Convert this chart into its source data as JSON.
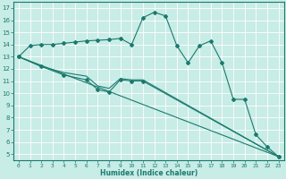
{
  "bg_color": "#c8ece6",
  "line_color": "#1a7a6e",
  "grid_color": "#b0ddd6",
  "xlabel": "Humidex (Indice chaleur)",
  "xlim": [
    -0.5,
    23.5
  ],
  "ylim": [
    4.5,
    17.5
  ],
  "xticks": [
    0,
    1,
    2,
    3,
    4,
    5,
    6,
    7,
    8,
    9,
    10,
    11,
    12,
    13,
    14,
    15,
    16,
    17,
    18,
    19,
    20,
    21,
    22,
    23
  ],
  "yticks": [
    5,
    6,
    7,
    8,
    9,
    10,
    11,
    12,
    13,
    14,
    15,
    16,
    17
  ],
  "line1_x": [
    0,
    1,
    2,
    3,
    4,
    5,
    6,
    7,
    8,
    9,
    10,
    11,
    12,
    13,
    14,
    15,
    16,
    17,
    18,
    19,
    20,
    21,
    22,
    23
  ],
  "line1_y": [
    13.0,
    13.9,
    14.0,
    14.0,
    14.1,
    14.2,
    14.3,
    14.35,
    14.4,
    14.5,
    14.0,
    16.2,
    16.65,
    16.35,
    13.9,
    12.5,
    13.9,
    14.3,
    12.5,
    9.5,
    9.5,
    6.6,
    5.6,
    4.8
  ],
  "line2_x": [
    0,
    2,
    4,
    6,
    7,
    8,
    9,
    10,
    11,
    23
  ],
  "line2_y": [
    13.0,
    12.2,
    11.5,
    11.1,
    10.3,
    10.1,
    11.1,
    11.0,
    11.0,
    4.8
  ],
  "line3_x": [
    0,
    2,
    4,
    6,
    7,
    8,
    9,
    10,
    11,
    23
  ],
  "line3_y": [
    13.0,
    12.2,
    11.7,
    11.4,
    10.6,
    10.4,
    11.2,
    11.1,
    11.1,
    4.8
  ],
  "line4_x": [
    0,
    23
  ],
  "line4_y": [
    13.0,
    4.8
  ]
}
